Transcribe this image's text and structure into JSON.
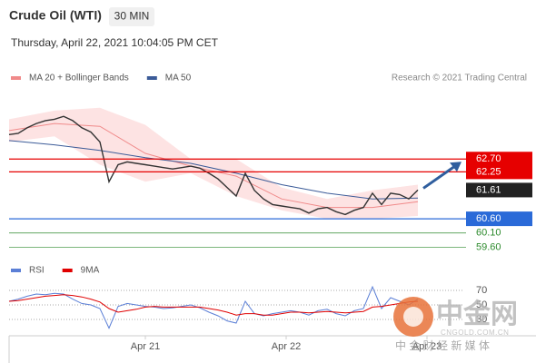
{
  "header": {
    "title": "Crude Oil (WTI)",
    "interval": "30 MIN",
    "timestamp": "Thursday, April 22, 2021 10:04:05 PM CET"
  },
  "watermark": {
    "name": "中金网",
    "domain": "CNGOLD.COM.CN",
    "tagline": "中 金 财 经 新 媒 体"
  },
  "chart_data": [
    {
      "type": "line",
      "credit": "Research © 2021 Trading Central",
      "xlim": [
        0,
        50
      ],
      "ylim": [
        59.2,
        65.1
      ],
      "series": [
        {
          "color": "#333333",
          "x": [
            0,
            1,
            2,
            3,
            4,
            5,
            6,
            7,
            8,
            9,
            10,
            11,
            12,
            13,
            14,
            15,
            16,
            17,
            18,
            19,
            20,
            21,
            22,
            23,
            24,
            25,
            26,
            27,
            28,
            29,
            30,
            31,
            32,
            33,
            34,
            35,
            36,
            37,
            38,
            39,
            40,
            41,
            42,
            43,
            44,
            45
          ],
          "values": [
            63.56,
            63.6,
            63.8,
            63.95,
            64.05,
            64.1,
            64.2,
            64.05,
            63.8,
            63.65,
            63.3,
            61.9,
            62.5,
            62.6,
            62.55,
            62.5,
            62.45,
            62.4,
            62.35,
            62.4,
            62.45,
            62.38,
            62.2,
            62.0,
            61.7,
            61.4,
            62.2,
            61.6,
            61.3,
            61.1,
            61.05,
            61.0,
            60.95,
            60.8,
            60.95,
            61.0,
            60.85,
            60.75,
            60.9,
            61.0,
            61.5,
            61.1,
            61.5,
            61.45,
            61.3,
            61.61
          ]
        },
        {
          "name": "MA 20 + Bollinger Bands",
          "color": "#f08a8a",
          "band_color": "#fde3e3",
          "x": [
            0,
            5,
            10,
            15,
            20,
            25,
            30,
            35,
            40,
            45
          ],
          "values": [
            63.7,
            63.95,
            63.85,
            62.9,
            62.45,
            62.1,
            61.3,
            61.0,
            61.0,
            61.2
          ],
          "band_upper": [
            64.1,
            64.4,
            64.5,
            63.9,
            62.7,
            62.7,
            61.7,
            61.3,
            61.6,
            61.8
          ],
          "band_lower": [
            63.3,
            63.5,
            62.5,
            61.9,
            62.2,
            61.4,
            60.9,
            60.6,
            60.6,
            60.7
          ]
        },
        {
          "name": "MA 50",
          "color": "#3b5b98",
          "x": [
            0,
            5,
            10,
            15,
            20,
            25,
            30,
            35,
            40,
            45
          ],
          "values": [
            63.35,
            63.2,
            63.0,
            62.75,
            62.55,
            62.2,
            61.8,
            61.5,
            61.3,
            61.33
          ]
        }
      ],
      "levels": [
        {
          "value": 62.7,
          "label": "62.70",
          "color": "#e60000",
          "line": true,
          "box": true
        },
        {
          "value": 62.25,
          "label": "62.25",
          "color": "#e60000",
          "line": true,
          "box": true
        },
        {
          "value": 61.61,
          "label": "61.61",
          "color": "#222222",
          "line": false,
          "box": true
        },
        {
          "value": 60.6,
          "label": "60.60",
          "color": "#2a6ad8",
          "line": true,
          "box": true
        },
        {
          "value": 60.1,
          "label": "60.10",
          "color": "#2e8b2e",
          "line": true,
          "box": false
        },
        {
          "value": 59.6,
          "label": "59.60",
          "color": "#2e8b2e",
          "line": true,
          "box": false
        }
      ],
      "xticks": [
        {
          "value": 15,
          "label": "Apr 21"
        },
        {
          "value": 30.5,
          "label": "Apr 22"
        },
        {
          "value": 46,
          "label": "Apr 23"
        }
      ]
    },
    {
      "type": "line",
      "xlim": [
        0,
        50
      ],
      "ylim": [
        10,
        90
      ],
      "yticks": [
        30,
        50,
        70
      ],
      "grid": true,
      "series": [
        {
          "name": "RSI",
          "color": "#5b7fd6",
          "x": [
            0,
            1,
            2,
            3,
            4,
            5,
            6,
            7,
            8,
            9,
            10,
            11,
            12,
            13,
            14,
            15,
            16,
            17,
            18,
            19,
            20,
            21,
            22,
            23,
            24,
            25,
            26,
            27,
            28,
            29,
            30,
            31,
            32,
            33,
            34,
            35,
            36,
            37,
            38,
            39,
            40,
            41,
            42,
            43,
            44,
            45
          ],
          "values": [
            55,
            58,
            62,
            65,
            64,
            66,
            65,
            58,
            52,
            50,
            45,
            18,
            48,
            52,
            50,
            48,
            47,
            45,
            46,
            48,
            50,
            46,
            40,
            35,
            28,
            25,
            55,
            38,
            35,
            38,
            40,
            42,
            40,
            36,
            42,
            44,
            38,
            35,
            42,
            45,
            75,
            45,
            60,
            55,
            50,
            58
          ]
        },
        {
          "name": "9MA",
          "color": "#e00000",
          "x": [
            0,
            1,
            2,
            3,
            4,
            5,
            6,
            7,
            8,
            9,
            10,
            11,
            12,
            13,
            14,
            15,
            16,
            17,
            18,
            19,
            20,
            21,
            22,
            23,
            24,
            25,
            26,
            27,
            28,
            29,
            30,
            31,
            32,
            33,
            34,
            35,
            36,
            37,
            38,
            39,
            40,
            41,
            42,
            43,
            44,
            45
          ],
          "values": [
            55,
            56,
            58,
            60,
            62,
            63,
            64,
            63,
            61,
            58,
            54,
            45,
            40,
            42,
            44,
            47,
            48,
            47,
            47,
            47,
            47,
            47,
            45,
            43,
            40,
            36,
            38,
            38,
            36,
            36,
            38,
            40,
            40,
            39,
            40,
            41,
            40,
            39,
            40,
            41,
            47,
            48,
            50,
            52,
            54,
            55
          ]
        }
      ]
    }
  ]
}
